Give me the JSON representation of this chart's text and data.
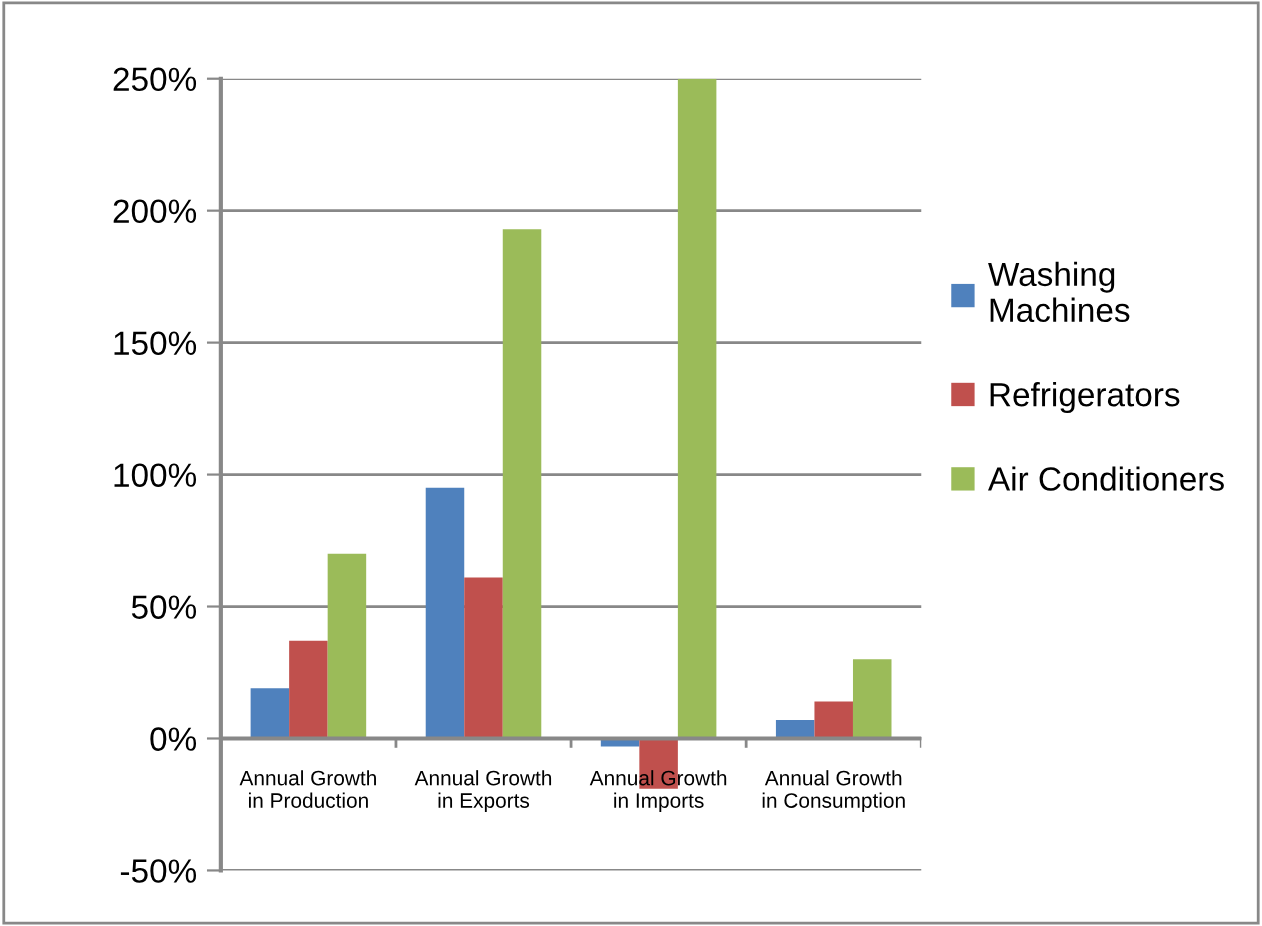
{
  "chart_data": {
    "type": "bar",
    "categories": [
      "Annual Growth\nin Production",
      "Annual Growth\nin Exports",
      "Annual Growth\nin Imports",
      "Annual Growth\nin Consumption"
    ],
    "series": [
      {
        "name": "Washing\nMachines",
        "color": "#4f81bd",
        "values": [
          19,
          95,
          -3,
          7
        ]
      },
      {
        "name": "Refrigerators",
        "color": "#c0504d",
        "values": [
          37,
          61,
          -19,
          14
        ]
      },
      {
        "name": "Air Conditioners",
        "color": "#9bbb59",
        "values": [
          70,
          193,
          250,
          30
        ]
      }
    ],
    "ylim": [
      -50,
      250
    ],
    "yticks": [
      {
        "value": -50,
        "label": "-50%"
      },
      {
        "value": 0,
        "label": "0%"
      },
      {
        "value": 50,
        "label": "50%"
      },
      {
        "value": 100,
        "label": "100%"
      },
      {
        "value": 150,
        "label": "150%"
      },
      {
        "value": 200,
        "label": "200%"
      },
      {
        "value": 250,
        "label": "250%"
      }
    ],
    "grid": "y",
    "legend": "right"
  }
}
